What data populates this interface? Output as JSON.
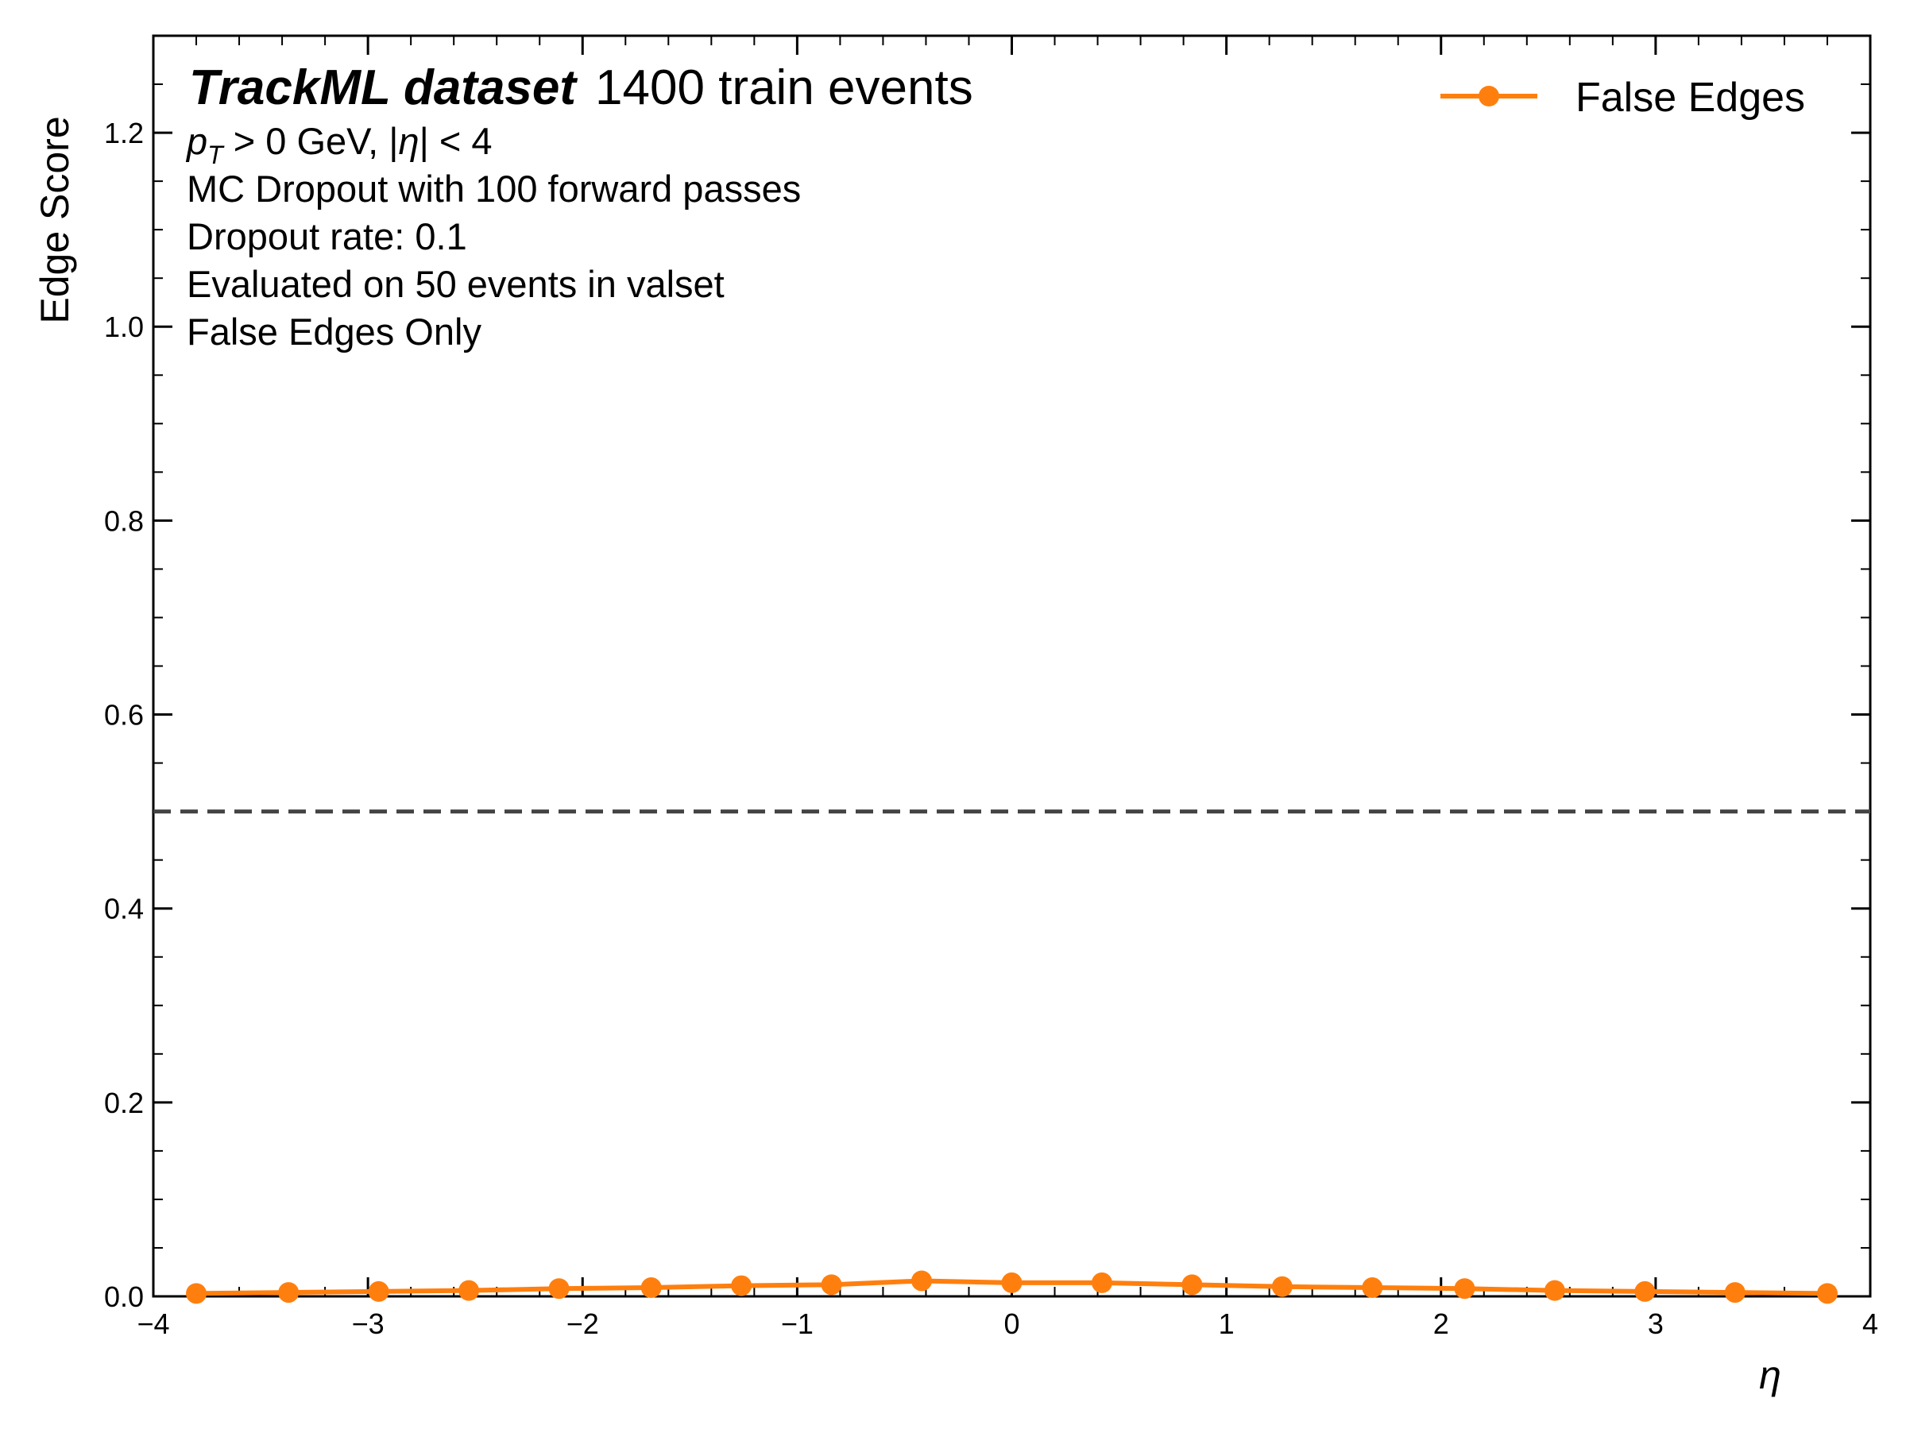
{
  "chart_data": {
    "type": "line",
    "xlabel": "η",
    "ylabel": "Edge Score",
    "xlim": [
      -4,
      4
    ],
    "ylim": [
      0,
      1.3
    ],
    "x_ticks": [
      -4,
      -3,
      -2,
      -1,
      0,
      1,
      2,
      3,
      4
    ],
    "x_tick_labels": [
      "−4",
      "−3",
      "−2",
      "−1",
      "0",
      "1",
      "2",
      "3",
      "4"
    ],
    "y_ticks": [
      0.0,
      0.2,
      0.4,
      0.6,
      0.8,
      1.0,
      1.2
    ],
    "y_tick_labels": [
      "0.0",
      "0.2",
      "0.4",
      "0.6",
      "0.8",
      "1.0",
      "1.2"
    ],
    "reference_line": {
      "y": 0.5,
      "style": "dashed",
      "color": "#444444"
    },
    "series": [
      {
        "name": "False Edges",
        "color": "#ff7f0e",
        "x": [
          -3.8,
          -3.37,
          -2.95,
          -2.53,
          -2.11,
          -1.68,
          -1.26,
          -0.84,
          -0.42,
          0.0,
          0.42,
          0.84,
          1.26,
          1.68,
          2.11,
          2.53,
          2.95,
          3.37,
          3.8
        ],
        "values": [
          0.003,
          0.004,
          0.005,
          0.006,
          0.008,
          0.009,
          0.011,
          0.012,
          0.016,
          0.014,
          0.014,
          0.012,
          0.01,
          0.009,
          0.008,
          0.006,
          0.005,
          0.004,
          0.003
        ]
      }
    ],
    "legend": {
      "position": "top-right",
      "entries": [
        "False Edges"
      ]
    },
    "annotations": {
      "brand": "TrackML dataset",
      "subtitle": "1400 train events",
      "cut_pt_symbol": "p",
      "cut_pt_subscript": "T",
      "cut_pt_rest": " > 0 GeV, |",
      "cut_eta_symbol": "η",
      "cut_eta_rest": "| < 4",
      "line2": "MC Dropout with 100 forward passes",
      "line3": "Dropout rate: 0.1",
      "line4": "Evaluated on 50 events in valset",
      "line5": "False Edges Only"
    }
  }
}
